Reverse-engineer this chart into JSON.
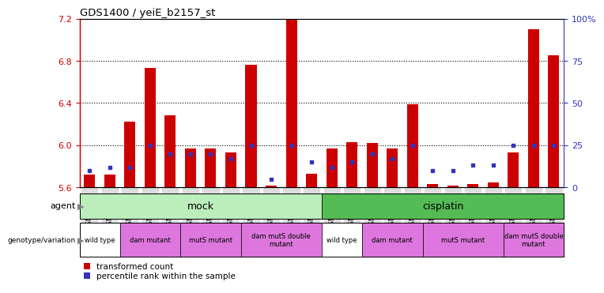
{
  "title": "GDS1400 / yeiE_b2157_st",
  "samples": [
    "GSM65600",
    "GSM65601",
    "GSM65622",
    "GSM65588",
    "GSM65589",
    "GSM65590",
    "GSM65596",
    "GSM65597",
    "GSM65598",
    "GSM65591",
    "GSM65593",
    "GSM65594",
    "GSM65638",
    "GSM65639",
    "GSM65641",
    "GSM65628",
    "GSM65629",
    "GSM65630",
    "GSM65632",
    "GSM65634",
    "GSM65636",
    "GSM65623",
    "GSM65624",
    "GSM65626"
  ],
  "red_values": [
    5.72,
    5.72,
    6.22,
    6.73,
    6.28,
    5.97,
    5.97,
    5.93,
    6.76,
    5.62,
    7.2,
    5.73,
    5.97,
    6.03,
    6.02,
    5.97,
    6.39,
    5.63,
    5.62,
    5.63,
    5.65,
    5.93,
    7.1,
    6.85
  ],
  "blue_pct": [
    10,
    12,
    12,
    25,
    20,
    20,
    20,
    17,
    25,
    5,
    25,
    15,
    12,
    15,
    20,
    17,
    25,
    10,
    10,
    13,
    13,
    25,
    25,
    25
  ],
  "ymin": 5.6,
  "ymax": 7.2,
  "left_yticks": [
    5.6,
    6.0,
    6.4,
    6.8,
    7.2
  ],
  "right_yticks": [
    0,
    25,
    50,
    75,
    100
  ],
  "right_yticklabels": [
    "0",
    "25",
    "50",
    "75",
    "100%"
  ],
  "dotted_lines": [
    6.0,
    6.4,
    6.8
  ],
  "bar_color": "#CC0000",
  "blue_color": "#3333BB",
  "mock_color": "#BBEEBB",
  "cisplatin_color": "#55BB55",
  "wt_color": "#FFFFFF",
  "mut_color": "#DD77DD",
  "ticklabel_bg": "#DDDDDD",
  "geno_groups": [
    {
      "label": "wild type",
      "start": 0,
      "end": 1,
      "color": "#FFFFFF"
    },
    {
      "label": "dam mutant",
      "start": 2,
      "end": 4,
      "color": "#DD77DD"
    },
    {
      "label": "mutS mutant",
      "start": 5,
      "end": 7,
      "color": "#DD77DD"
    },
    {
      "label": "dam mutS double\nmutant",
      "start": 8,
      "end": 11,
      "color": "#DD77DD"
    },
    {
      "label": "wild type",
      "start": 12,
      "end": 13,
      "color": "#FFFFFF"
    },
    {
      "label": "dam mutant",
      "start": 14,
      "end": 16,
      "color": "#DD77DD"
    },
    {
      "label": "mutS mutant",
      "start": 17,
      "end": 20,
      "color": "#DD77DD"
    },
    {
      "label": "dam mutS double\nmutant",
      "start": 21,
      "end": 23,
      "color": "#DD77DD"
    }
  ]
}
